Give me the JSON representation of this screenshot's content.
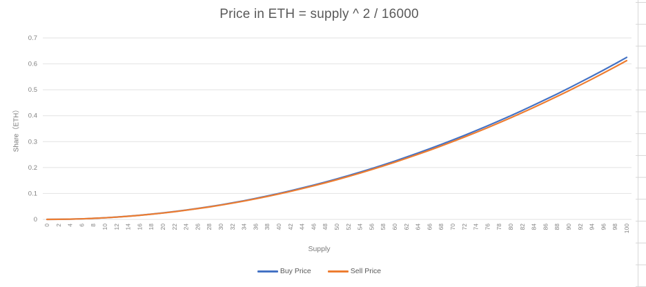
{
  "colors": {
    "buy_line": "#4472C4",
    "sell_line": "#ED7D31",
    "gridline": "#E2E2E2",
    "axis_text": "#808080",
    "title_text": "#595959",
    "spreadsheet_line": "#D6D6D6",
    "background": "#FFFFFF"
  },
  "chart_data": {
    "type": "line",
    "title": "Price in ETH = supply ^ 2 / 16000",
    "xlabel": "Supply",
    "ylabel": "Share（ETH）",
    "x": [
      0,
      2,
      4,
      6,
      8,
      10,
      12,
      14,
      16,
      18,
      20,
      22,
      24,
      26,
      28,
      30,
      32,
      34,
      36,
      38,
      40,
      42,
      44,
      46,
      48,
      50,
      52,
      54,
      56,
      58,
      60,
      62,
      64,
      66,
      68,
      70,
      72,
      74,
      76,
      78,
      80,
      82,
      84,
      86,
      88,
      90,
      92,
      94,
      96,
      98,
      100
    ],
    "series": [
      {
        "name": "Buy Price",
        "color": "#4472C4",
        "values": [
          0,
          0.00025,
          0.001,
          0.00225,
          0.004,
          0.00625,
          0.009,
          0.01225,
          0.016,
          0.02025,
          0.025,
          0.03025,
          0.036,
          0.04225,
          0.049,
          0.05625,
          0.064,
          0.07225,
          0.081,
          0.09025,
          0.1,
          0.11025,
          0.121,
          0.13225,
          0.144,
          0.15625,
          0.169,
          0.18225,
          0.196,
          0.21025,
          0.225,
          0.24025,
          0.256,
          0.27225,
          0.289,
          0.30625,
          0.324,
          0.34225,
          0.361,
          0.38025,
          0.4,
          0.42025,
          0.441,
          0.46225,
          0.484,
          0.50625,
          0.529,
          0.55225,
          0.576,
          0.60025,
          0.625
        ]
      },
      {
        "name": "Sell Price",
        "color": "#ED7D31",
        "values": [
          0,
          0.00025,
          0.00098,
          0.0022,
          0.00392,
          0.00613,
          0.00882,
          0.012,
          0.01568,
          0.01985,
          0.0245,
          0.02965,
          0.03528,
          0.04141,
          0.04802,
          0.05513,
          0.06272,
          0.07081,
          0.07938,
          0.08845,
          0.098,
          0.10805,
          0.11858,
          0.12961,
          0.14112,
          0.15313,
          0.16562,
          0.17861,
          0.19208,
          0.20605,
          0.2205,
          0.23545,
          0.25088,
          0.26681,
          0.28322,
          0.30013,
          0.31752,
          0.33541,
          0.35378,
          0.37265,
          0.392,
          0.41185,
          0.43218,
          0.45301,
          0.47432,
          0.49613,
          0.51842,
          0.54121,
          0.56448,
          0.58825,
          0.6125
        ]
      }
    ],
    "xlim": [
      0,
      100
    ],
    "ylim": [
      0,
      0.7
    ],
    "yticks": [
      0,
      0.1,
      0.2,
      0.3,
      0.4,
      0.5,
      0.6,
      0.7
    ],
    "grid": "horizontal",
    "legend_position": "bottom"
  }
}
